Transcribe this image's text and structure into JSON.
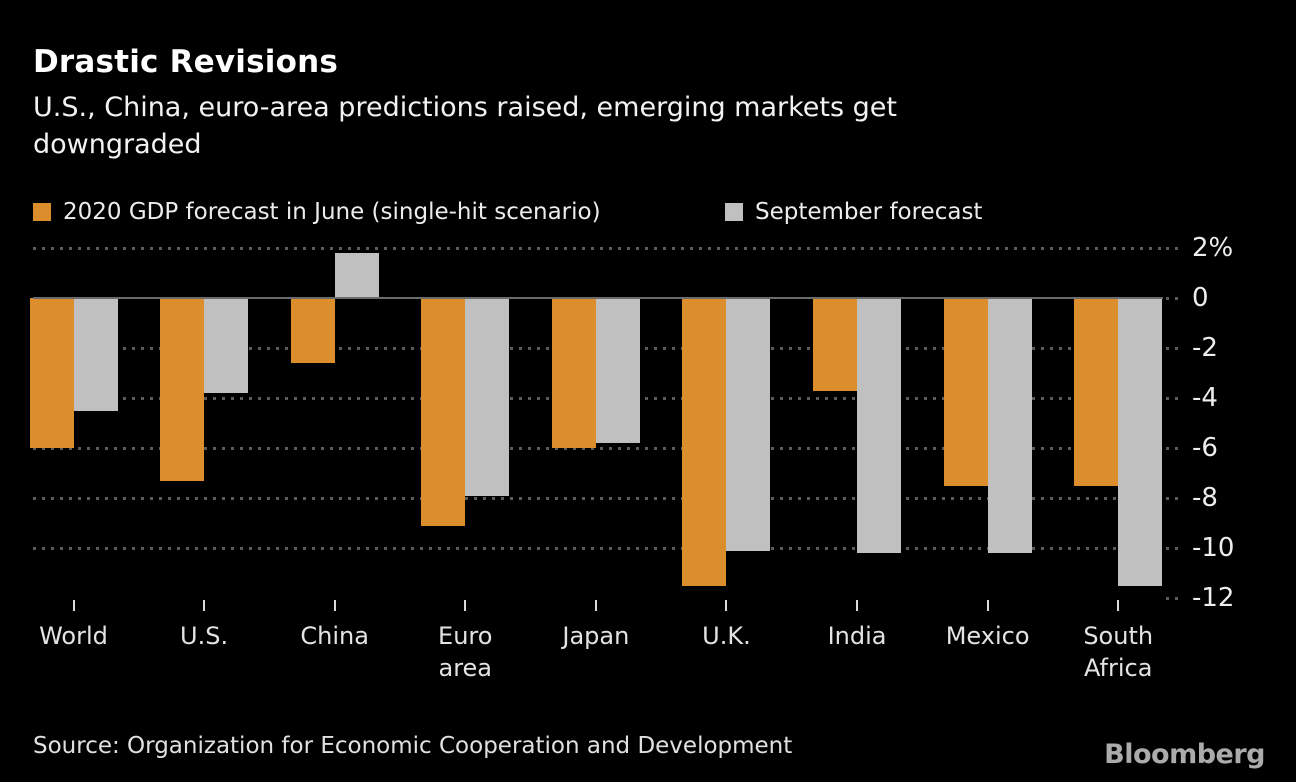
{
  "header": {
    "title": "Drastic Revisions",
    "subtitle": "U.S., China, euro-area predictions raised, emerging markets get downgraded",
    "subtitle_lines": "U.S., China, euro-area predictions raised, emerging markets get\ndowngraded"
  },
  "legend": {
    "items": [
      {
        "label": "2020 GDP forecast in June (single-hit scenario)",
        "color": "#DB8E2B"
      },
      {
        "label": "September forecast",
        "color": "#C0C0C0"
      }
    ]
  },
  "chart_data": {
    "type": "bar",
    "title": "Drastic Revisions",
    "categories": [
      "World",
      "U.S.",
      "China",
      "Euro area",
      "Japan",
      "U.K.",
      "India",
      "Mexico",
      "South Africa"
    ],
    "series": [
      {
        "name": "2020 GDP forecast in June (single-hit scenario)",
        "color": "#DB8E2B",
        "values": [
          -6.0,
          -7.3,
          -2.6,
          -9.1,
          -6.0,
          -11.5,
          -3.7,
          -7.5,
          -7.5
        ]
      },
      {
        "name": "September forecast",
        "color": "#C0C0C0",
        "values": [
          -4.5,
          -3.8,
          1.8,
          -7.9,
          -5.8,
          -10.1,
          -10.2,
          -10.2,
          -11.5
        ]
      }
    ],
    "unit": "%",
    "ylim": [
      -12,
      2
    ],
    "yticks": [
      2,
      0,
      -2,
      -4,
      -6,
      -8,
      -10,
      -12
    ],
    "ytick_labels": [
      "2%",
      "0",
      "-2",
      "-4",
      "-6",
      "-8",
      "-10",
      "-12"
    ],
    "grid": "horizontal dotted",
    "zero_line": true,
    "legend_position": "top",
    "axis_labels_position": "right"
  },
  "footer": {
    "source": "Source: Organization for Economic Cooperation and Development",
    "brand": "Bloomberg"
  },
  "colors": {
    "background": "#000000",
    "title_text": "#FFFFFF",
    "body_text": "#F2F2F2",
    "axis_text": "#EDEDED",
    "gridline": "#5C5C5C",
    "zero_line": "#6B6B6B",
    "june_bar": "#DB8E2B",
    "september_bar": "#C0C0C0",
    "brand_text": "#ABABAB"
  }
}
